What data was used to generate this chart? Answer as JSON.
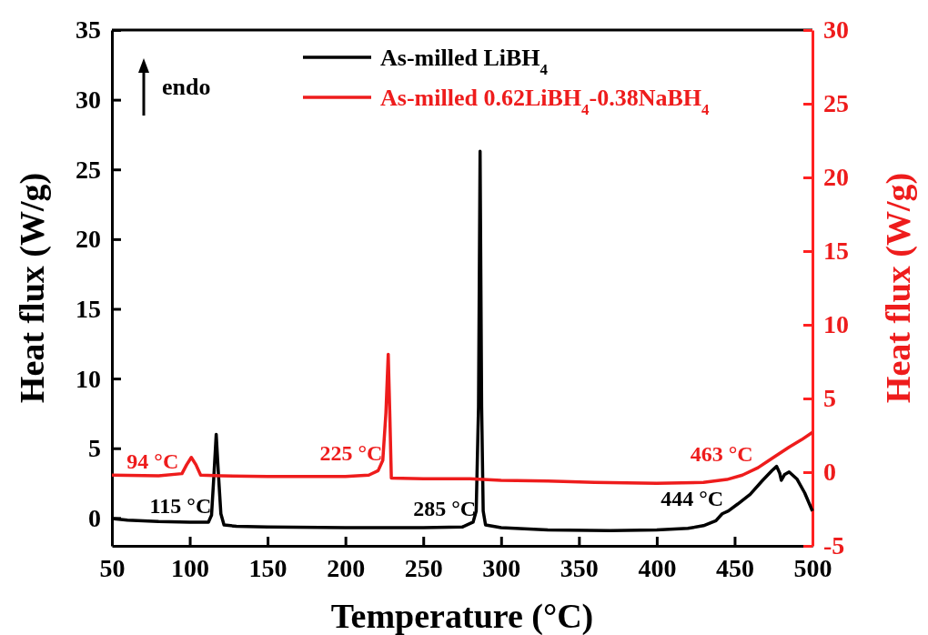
{
  "chart_data": {
    "type": "line",
    "xlabel": "Temperature (°C)",
    "ylabel": "Heat flux (W/g)",
    "y2label": "Heat flux (W/g)",
    "xlim": [
      50,
      500
    ],
    "xticks": [
      50,
      100,
      150,
      200,
      250,
      300,
      350,
      400,
      450,
      500
    ],
    "ylim": [
      -2,
      35
    ],
    "yticks": [
      0,
      5,
      10,
      15,
      20,
      25,
      30,
      35
    ],
    "y2lim": [
      -5,
      30
    ],
    "y2ticks": [
      -5,
      0,
      5,
      10,
      15,
      20,
      25,
      30
    ],
    "legend": "top",
    "grid": false,
    "line_style": "solid",
    "marker": "none",
    "annotations": [
      "endo",
      {
        "text": "94 °C",
        "x": 94,
        "y": 2.9
      },
      {
        "text": "115 °C",
        "x": 115,
        "y": -0.3
      },
      {
        "text": "225 °C",
        "x": 225,
        "y": 3.5
      },
      {
        "text": "285 °C",
        "x": 285,
        "y": -0.5
      },
      {
        "text": "444 °C",
        "x": 444,
        "y": 0.2
      },
      {
        "text": "463 °C",
        "x": 463,
        "y": 3.4
      }
    ],
    "series": [
      {
        "name": "As-milled LiBH$_{4}$",
        "color": "#000000",
        "x": [
          50,
          60,
          80,
          100,
          112,
          114,
          115.5,
          117,
          118.5,
          120,
          122,
          130,
          150,
          200,
          250,
          275,
          282,
          284,
          285.5,
          286.5,
          287.5,
          288.5,
          290,
          300,
          330,
          370,
          400,
          420,
          430,
          438,
          442,
          446,
          452,
          460,
          468,
          474,
          477,
          479,
          480,
          482,
          485,
          490,
          495,
          500
        ],
        "values": [
          -0.05,
          -0.15,
          -0.25,
          -0.3,
          -0.3,
          0.2,
          3,
          6.0,
          3,
          0.3,
          -0.5,
          -0.6,
          -0.65,
          -0.7,
          -0.7,
          -0.65,
          -0.3,
          0.5,
          8,
          26.3,
          8,
          0.5,
          -0.5,
          -0.7,
          -0.85,
          -0.9,
          -0.85,
          -0.75,
          -0.55,
          -0.2,
          0.3,
          0.5,
          1.0,
          1.7,
          2.7,
          3.4,
          3.7,
          3.2,
          2.7,
          3.1,
          3.3,
          2.8,
          1.8,
          0.5
        ]
      },
      {
        "name": "As-milled 0.62LiBH$_{4}$-0.38NaBH$_{4}$",
        "color": "#ee1c1c",
        "axis": "y2",
        "x": [
          50,
          80,
          95,
          98,
          101,
          104,
          107,
          120,
          150,
          200,
          215,
          221,
          224,
          226,
          227.5,
          228.5,
          229.5,
          250,
          280,
          300,
          330,
          360,
          400,
          430,
          445,
          455,
          465,
          475,
          485,
          493,
          500
        ],
        "values": [
          -0.2,
          -0.25,
          -0.1,
          0.5,
          1.0,
          0.5,
          -0.2,
          -0.25,
          -0.3,
          -0.3,
          -0.2,
          0.1,
          0.8,
          4,
          8.0,
          4,
          -0.4,
          -0.45,
          -0.45,
          -0.55,
          -0.6,
          -0.7,
          -0.75,
          -0.7,
          -0.5,
          -0.2,
          0.3,
          1.0,
          1.7,
          2.2,
          2.7
        ]
      }
    ]
  }
}
